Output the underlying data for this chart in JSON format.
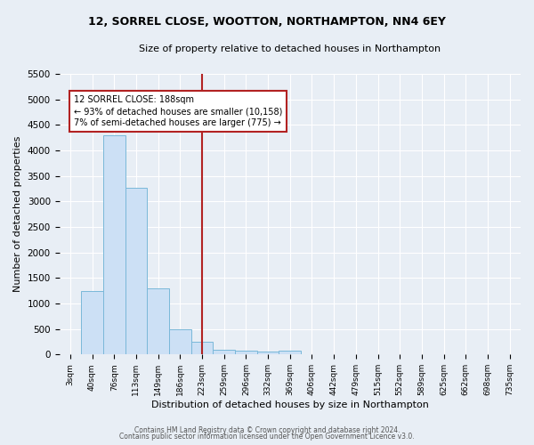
{
  "title": "12, SORREL CLOSE, WOOTTON, NORTHAMPTON, NN4 6EY",
  "subtitle": "Size of property relative to detached houses in Northampton",
  "xlabel": "Distribution of detached houses by size in Northampton",
  "ylabel": "Number of detached properties",
  "bar_color": "#cce0f5",
  "bar_edgecolor": "#7ab8d9",
  "bin_labels": [
    "3sqm",
    "40sqm",
    "76sqm",
    "113sqm",
    "149sqm",
    "186sqm",
    "223sqm",
    "259sqm",
    "296sqm",
    "332sqm",
    "369sqm",
    "406sqm",
    "442sqm",
    "479sqm",
    "515sqm",
    "552sqm",
    "589sqm",
    "625sqm",
    "662sqm",
    "698sqm",
    "735sqm"
  ],
  "values": [
    0,
    1250,
    4300,
    3270,
    1290,
    500,
    250,
    100,
    75,
    50,
    75,
    0,
    0,
    0,
    0,
    0,
    0,
    0,
    0,
    0,
    0
  ],
  "ylim": [
    0,
    5500
  ],
  "yticks": [
    0,
    500,
    1000,
    1500,
    2000,
    2500,
    3000,
    3500,
    4000,
    4500,
    5000,
    5500
  ],
  "vline_x": 6.0,
  "vline_color": "#b22222",
  "annotation_text": "12 SORREL CLOSE: 188sqm\n← 93% of detached houses are smaller (10,158)\n7% of semi-detached houses are larger (775) →",
  "annotation_box_color": "#ffffff",
  "annotation_box_edgecolor": "#b22222",
  "footer1": "Contains HM Land Registry data © Crown copyright and database right 2024.",
  "footer2": "Contains public sector information licensed under the Open Government Licence v3.0.",
  "background_color": "#e8eef5",
  "grid_color": "#ffffff",
  "title_fontsize": 9,
  "subtitle_fontsize": 8
}
